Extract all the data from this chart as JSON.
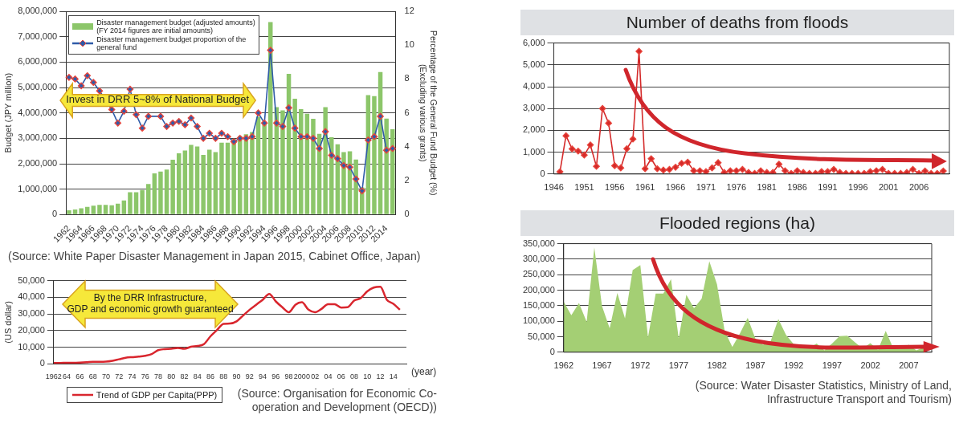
{
  "chart_data": [
    {
      "type": "bar",
      "categories": [
        "1962",
        null,
        "1964",
        null,
        "1966",
        null,
        "1968",
        null,
        "1970",
        null,
        "1972",
        null,
        "1974",
        null,
        "1976",
        null,
        "1978",
        null,
        "1980",
        null,
        "1982",
        null,
        "1984",
        null,
        "1986",
        null,
        "1988",
        null,
        "1990",
        null,
        "1992",
        null,
        "1994",
        null,
        "1996",
        null,
        "1998",
        null,
        "2000",
        null,
        "2002",
        null,
        "2004",
        null,
        "2006",
        null,
        "2008",
        null,
        "2010",
        null,
        "2012",
        null,
        "2014",
        null
      ],
      "series": [
        {
          "name": "Disaster management budget (adjusted amounts)\n(FY 2014 figures are initial amounts)",
          "color": "#8cc66a",
          "values": [
            170000,
            200000,
            250000,
            300000,
            350000,
            380000,
            380000,
            370000,
            430000,
            560000,
            880000,
            880000,
            970000,
            1200000,
            1620000,
            1690000,
            1770000,
            2160000,
            2410000,
            2520000,
            2740000,
            2680000,
            2350000,
            2550000,
            2460000,
            2830000,
            2830000,
            2970000,
            3090000,
            3160000,
            3250000,
            3850000,
            3550000,
            7570000,
            4230000,
            4100000,
            5540000,
            4560000,
            4150000,
            3970000,
            3770000,
            3180000,
            4230000,
            3040000,
            2770000,
            2460000,
            2490000,
            2170000,
            1070000,
            4700000,
            4660000,
            5610000,
            3780000,
            3360000
          ]
        },
        {
          "name": "Disaster management budget proportion of the\ngeneral fund",
          "type": "line",
          "axis": "y2",
          "color": "#2f5ba8",
          "values": [
            8.1,
            8.0,
            7.6,
            8.2,
            7.8,
            7.3,
            null,
            6.2,
            5.4,
            6.1,
            7.4,
            5.9,
            5.1,
            5.8,
            null,
            5.8,
            5.2,
            5.4,
            5.5,
            5.3,
            5.7,
            5.2,
            4.5,
            4.8,
            4.5,
            4.8,
            4.6,
            4.3,
            4.5,
            4.5,
            4.6,
            6.0,
            5.4,
            9.7,
            5.4,
            5.2,
            6.3,
            5.1,
            4.6,
            4.6,
            4.5,
            3.9,
            4.9,
            3.5,
            3.3,
            2.9,
            2.8,
            2.1,
            1.4,
            4.4,
            4.6,
            5.8,
            3.8,
            3.9
          ]
        }
      ],
      "ylim": [
        0,
        8000000
      ],
      "yticks": [
        {
          "value": 0,
          "label": "0"
        },
        {
          "value": 1000000,
          "label": "1,000,000"
        },
        {
          "value": 2000000,
          "label": "2,000,000"
        },
        {
          "value": 3000000,
          "label": "3,000,000"
        },
        {
          "value": 4000000,
          "label": "4,000,000"
        },
        {
          "value": 5000000,
          "label": "5,000,000"
        },
        {
          "value": 6000000,
          "label": "6,000,000"
        },
        {
          "value": 7000000,
          "label": "7,000,000"
        },
        {
          "value": 8000000,
          "label": "8,000,000"
        }
      ],
      "y2lim": [
        0,
        12
      ],
      "y2ticks": [
        0,
        2,
        4,
        6,
        8,
        10,
        12
      ],
      "ylabel": "Budget (JPY million)",
      "y2label": "Percentage of the General Fund Budget (%)\n(Excluding various grants)",
      "grid": "y",
      "legend": "top left",
      "marker": "diamond",
      "annotations": [
        "Invest in DRR 5~8% of National Budget",
        "(Source: White Paper Disaster Management in Japan 2015, Cabinet Office, Japan)"
      ]
    },
    {
      "type": "line",
      "x": [
        1962,
        1963,
        1964,
        1965,
        1966,
        1967,
        1968,
        1969,
        1970,
        1971,
        1972,
        1973,
        1974,
        1975,
        1976,
        1977,
        1978,
        1979,
        1980,
        1981,
        1982,
        1983,
        1984,
        1985,
        1986,
        1987,
        1988,
        1989,
        1990,
        1991,
        1992,
        1993,
        1994,
        1995,
        1996,
        1997,
        1998,
        1999,
        2000,
        2001,
        2002,
        2003,
        2004,
        2005,
        2006,
        2007,
        2008,
        2009,
        2010,
        2011,
        2012,
        2013,
        2014,
        2015
      ],
      "series": [
        {
          "name": "Trend of GDP per Capita(PPP)",
          "color": "#d9262e",
          "values": [
            500,
            500,
            600,
            600,
            700,
            900,
            1200,
            1200,
            1300,
            1800,
            2700,
            3600,
            4000,
            4300,
            4800,
            5800,
            8200,
            8800,
            9000,
            9500,
            9000,
            10200,
            10700,
            11800,
            16500,
            20300,
            24000,
            24200,
            25500,
            29000,
            32500,
            35500,
            38500,
            42000,
            37500,
            34000,
            31000,
            35500,
            37000,
            32500,
            31000,
            33000,
            35800,
            35800,
            33800,
            34000,
            38000,
            39500,
            43500,
            45800,
            46300,
            38500,
            36000,
            32500
          ]
        }
      ],
      "xlim": [
        1962,
        2016
      ],
      "xticks": [
        1962,
        {
          "value": 1964,
          "label": "64"
        },
        {
          "value": 1966,
          "label": "66"
        },
        {
          "value": 1968,
          "label": "68"
        },
        {
          "value": 1970,
          "label": "70"
        },
        {
          "value": 1972,
          "label": "72"
        },
        {
          "value": 1974,
          "label": "74"
        },
        {
          "value": 1976,
          "label": "76"
        },
        {
          "value": 1978,
          "label": "78"
        },
        {
          "value": 1980,
          "label": "80"
        },
        {
          "value": 1982,
          "label": "82"
        },
        {
          "value": 1984,
          "label": "84"
        },
        {
          "value": 1986,
          "label": "86"
        },
        {
          "value": 1988,
          "label": "88"
        },
        {
          "value": 1990,
          "label": "90"
        },
        {
          "value": 1992,
          "label": "92"
        },
        {
          "value": 1994,
          "label": "94"
        },
        {
          "value": 1996,
          "label": "96"
        },
        {
          "value": 1998,
          "label": "98"
        },
        2000,
        {
          "value": 2002,
          "label": "02"
        },
        {
          "value": 2004,
          "label": "04"
        },
        {
          "value": 2006,
          "label": "06"
        },
        {
          "value": 2008,
          "label": "08"
        },
        {
          "value": 2010,
          "label": "10"
        },
        {
          "value": 2012,
          "label": "12"
        },
        {
          "value": 2014,
          "label": "14"
        }
      ],
      "ylim": [
        0,
        50000
      ],
      "yticks": [
        {
          "value": 0,
          "label": "0"
        },
        {
          "value": 10000,
          "label": "10,000"
        },
        {
          "value": 20000,
          "label": "20,000"
        },
        {
          "value": 30000,
          "label": "30,000"
        },
        {
          "value": 40000,
          "label": "40,000"
        },
        {
          "value": 50000,
          "label": "50,000"
        }
      ],
      "xlabel": "(year)",
      "ylabel": "(US dollar)",
      "grid": "y",
      "legend": "bottom left",
      "annotations": [
        "By the DRR Infrastructure,\nGDP and economic growth guaranteed",
        "(Source: Organisation for Economic Co-operation and Development (OECD))"
      ]
    },
    {
      "type": "line",
      "title": "Number of deaths from floods",
      "x": [
        1947,
        1948,
        1949,
        1950,
        1951,
        1952,
        1953,
        1954,
        1955,
        1956,
        1957,
        1958,
        1959,
        1960,
        1961,
        1962,
        1963,
        1964,
        1965,
        1966,
        1967,
        1968,
        1969,
        1970,
        1971,
        1972,
        1973,
        1974,
        1975,
        1976,
        1977,
        1978,
        1979,
        1980,
        1981,
        1982,
        1983,
        1984,
        1985,
        1986,
        1987,
        1988,
        1989,
        1990,
        1991,
        1992,
        1993,
        1994,
        1995,
        1996,
        1997,
        1998,
        1999,
        2000,
        2001,
        2002,
        2003,
        2004,
        2005,
        2006,
        2007,
        2008,
        2009,
        2010
      ],
      "values": [
        100,
        1750,
        1150,
        1050,
        870,
        1330,
        350,
        3000,
        2330,
        380,
        280,
        1160,
        1600,
        5620,
        240,
        700,
        240,
        180,
        210,
        310,
        490,
        540,
        150,
        150,
        110,
        280,
        520,
        70,
        150,
        150,
        210,
        70,
        30,
        150,
        70,
        70,
        450,
        150,
        30,
        150,
        70,
        30,
        30,
        110,
        110,
        210,
        70,
        30,
        30,
        30,
        30,
        110,
        150,
        210,
        30,
        30,
        30,
        70,
        210,
        30,
        140,
        30,
        30,
        140
      ],
      "color": "#d42a2a",
      "marker": "diamond",
      "xlim": [
        1946,
        2011
      ],
      "xticks": [
        1946,
        1951,
        1956,
        1961,
        1966,
        1971,
        1976,
        1981,
        1986,
        1991,
        1996,
        2001,
        2006
      ],
      "ylim": [
        0,
        6000
      ],
      "yticks": [
        {
          "value": 0,
          "label": "0"
        },
        {
          "value": 1000,
          "label": "1,000"
        },
        {
          "value": 2000,
          "label": "2,000"
        },
        {
          "value": 3000,
          "label": "3,000"
        },
        {
          "value": 4000,
          "label": "4,000"
        },
        {
          "value": 5000,
          "label": "5,000"
        },
        {
          "value": 6000,
          "label": "6,000"
        }
      ],
      "grid": "y"
    },
    {
      "type": "area",
      "title": "Flooded regions (ha)",
      "x": [
        1962,
        1963,
        1964,
        1965,
        1966,
        1967,
        1968,
        1969,
        1970,
        1971,
        1972,
        1973,
        1974,
        1975,
        1976,
        1977,
        1978,
        1979,
        1980,
        1981,
        1982,
        1983,
        1984,
        1985,
        1986,
        1987,
        1988,
        1989,
        1990,
        1991,
        1992,
        1993,
        1994,
        1995,
        1996,
        1997,
        1998,
        1999,
        2000,
        2001,
        2002,
        2003,
        2004,
        2005,
        2006,
        2007,
        2008,
        2009
      ],
      "values": [
        163000,
        119000,
        159000,
        98000,
        338000,
        149000,
        77000,
        191000,
        109000,
        265000,
        281000,
        48000,
        189000,
        189000,
        236000,
        45000,
        185000,
        142000,
        173000,
        293000,
        219000,
        68000,
        17000,
        61000,
        111000,
        44000,
        24000,
        36000,
        107000,
        56000,
        26000,
        24000,
        14000,
        28000,
        6000,
        28000,
        52000,
        53000,
        32000,
        12000,
        29000,
        8000,
        69000,
        12000,
        12000,
        24000,
        6000,
        16000
      ],
      "color": "#a4cf74",
      "xlim": [
        1962,
        2010
      ],
      "xticks": [
        1962,
        1967,
        1972,
        1977,
        1982,
        1987,
        1992,
        1997,
        2002,
        2007
      ],
      "ylim": [
        0,
        350000
      ],
      "yticks": [
        {
          "value": 0,
          "label": "0"
        },
        {
          "value": 50000,
          "label": "50,000"
        },
        {
          "value": 100000,
          "label": "100,000"
        },
        {
          "value": 150000,
          "label": "150,000"
        },
        {
          "value": 200000,
          "label": "200,000"
        },
        {
          "value": 250000,
          "label": "250,000"
        },
        {
          "value": 300000,
          "label": "300,000"
        },
        {
          "value": 350000,
          "label": "350,000"
        }
      ],
      "grid": "y",
      "annotations": [
        "(Source: Water Disaster Statistics, Ministry of Land, Infrastructure Transport and Tourism)"
      ]
    }
  ]
}
